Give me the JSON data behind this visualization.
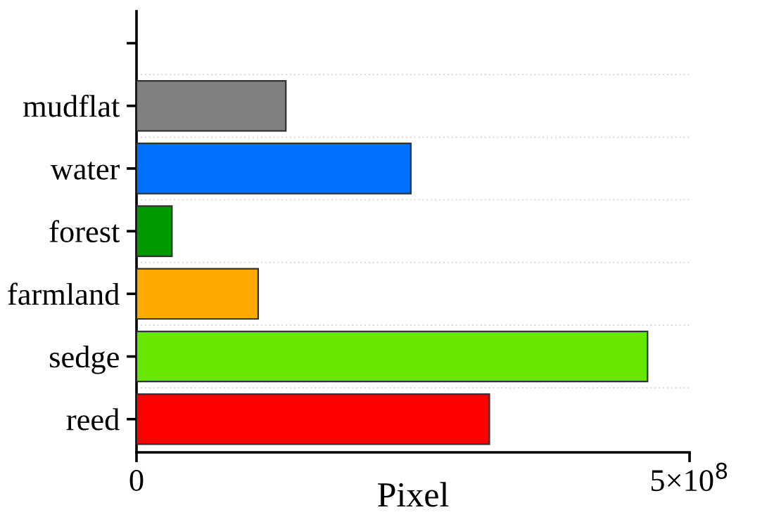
{
  "chart_data": {
    "type": "bar",
    "orientation": "horizontal",
    "xlabel": "Pixel",
    "categories": [
      null,
      "mudflat",
      "water",
      "forest",
      "farmland",
      "sedge",
      "reed"
    ],
    "values": [
      null,
      135000000,
      248000000,
      32000000,
      110000000,
      462000000,
      319000000
    ],
    "colors": [
      "#808080",
      "#808080",
      "#0070ff",
      "#009900",
      "#ffaa00",
      "#66e600",
      "#ff0000"
    ],
    "xlim": [
      0,
      500000000
    ],
    "xticks": [
      0,
      {
        "value": 500000000,
        "label": "5×10$^{8}$"
      }
    ],
    "grid": "y"
  }
}
